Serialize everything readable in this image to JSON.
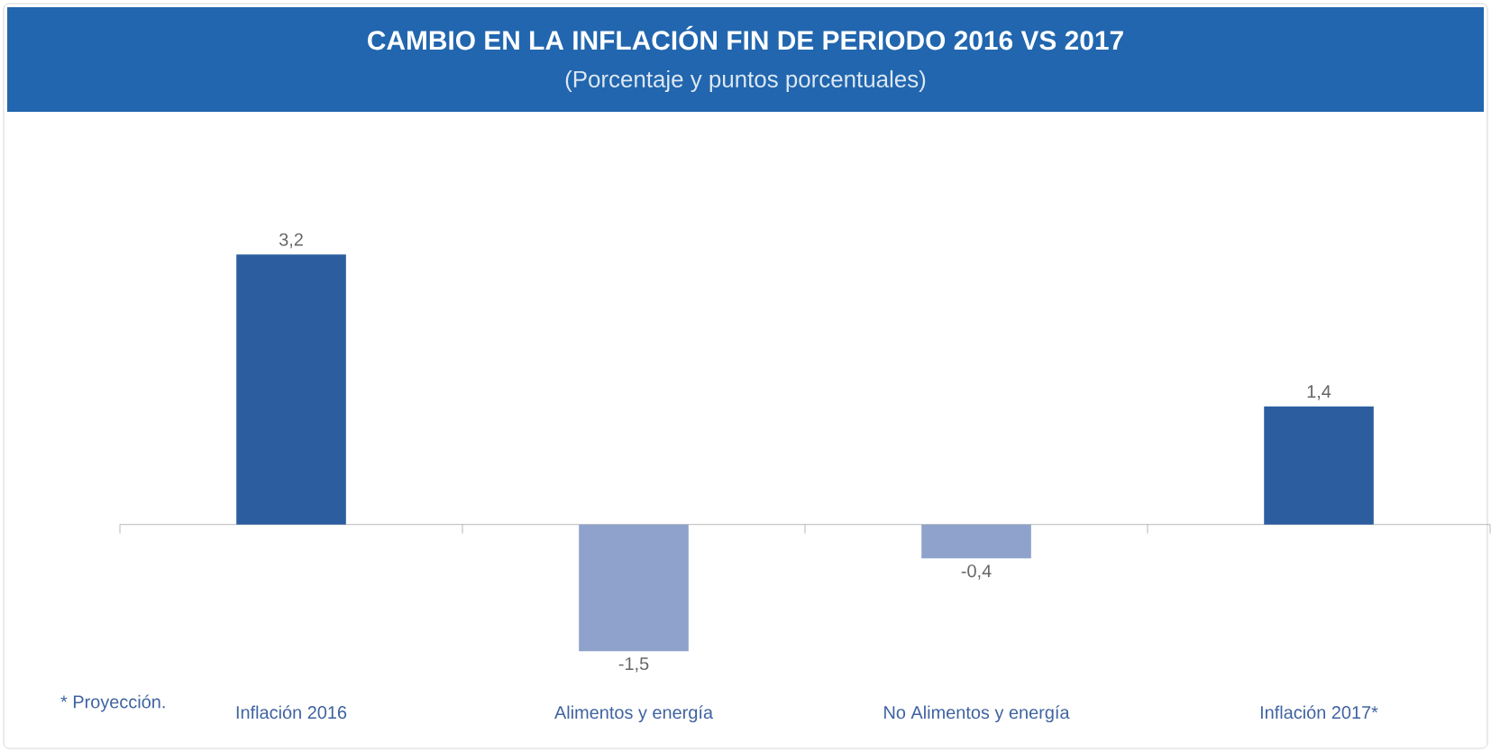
{
  "chart_data": {
    "type": "bar",
    "title": "CAMBIO EN LA INFLACIÓN FIN DE PERIODO 2016 VS 2017",
    "subtitle": "(Porcentaje y puntos porcentuales)",
    "categories": [
      "Inflación 2016",
      "Alimentos y energía",
      "No Alimentos y energía",
      "Inflación 2017*"
    ],
    "values": [
      3.2,
      -1.5,
      -0.4,
      1.4
    ],
    "colors": [
      "#2b5d9f",
      "#8ea2cb",
      "#8ea2cb",
      "#2b5d9f"
    ],
    "value_labels": [
      "3,2",
      "-1,5",
      "-0,4",
      "1,4"
    ],
    "annotations": [
      "* Proyección."
    ]
  }
}
